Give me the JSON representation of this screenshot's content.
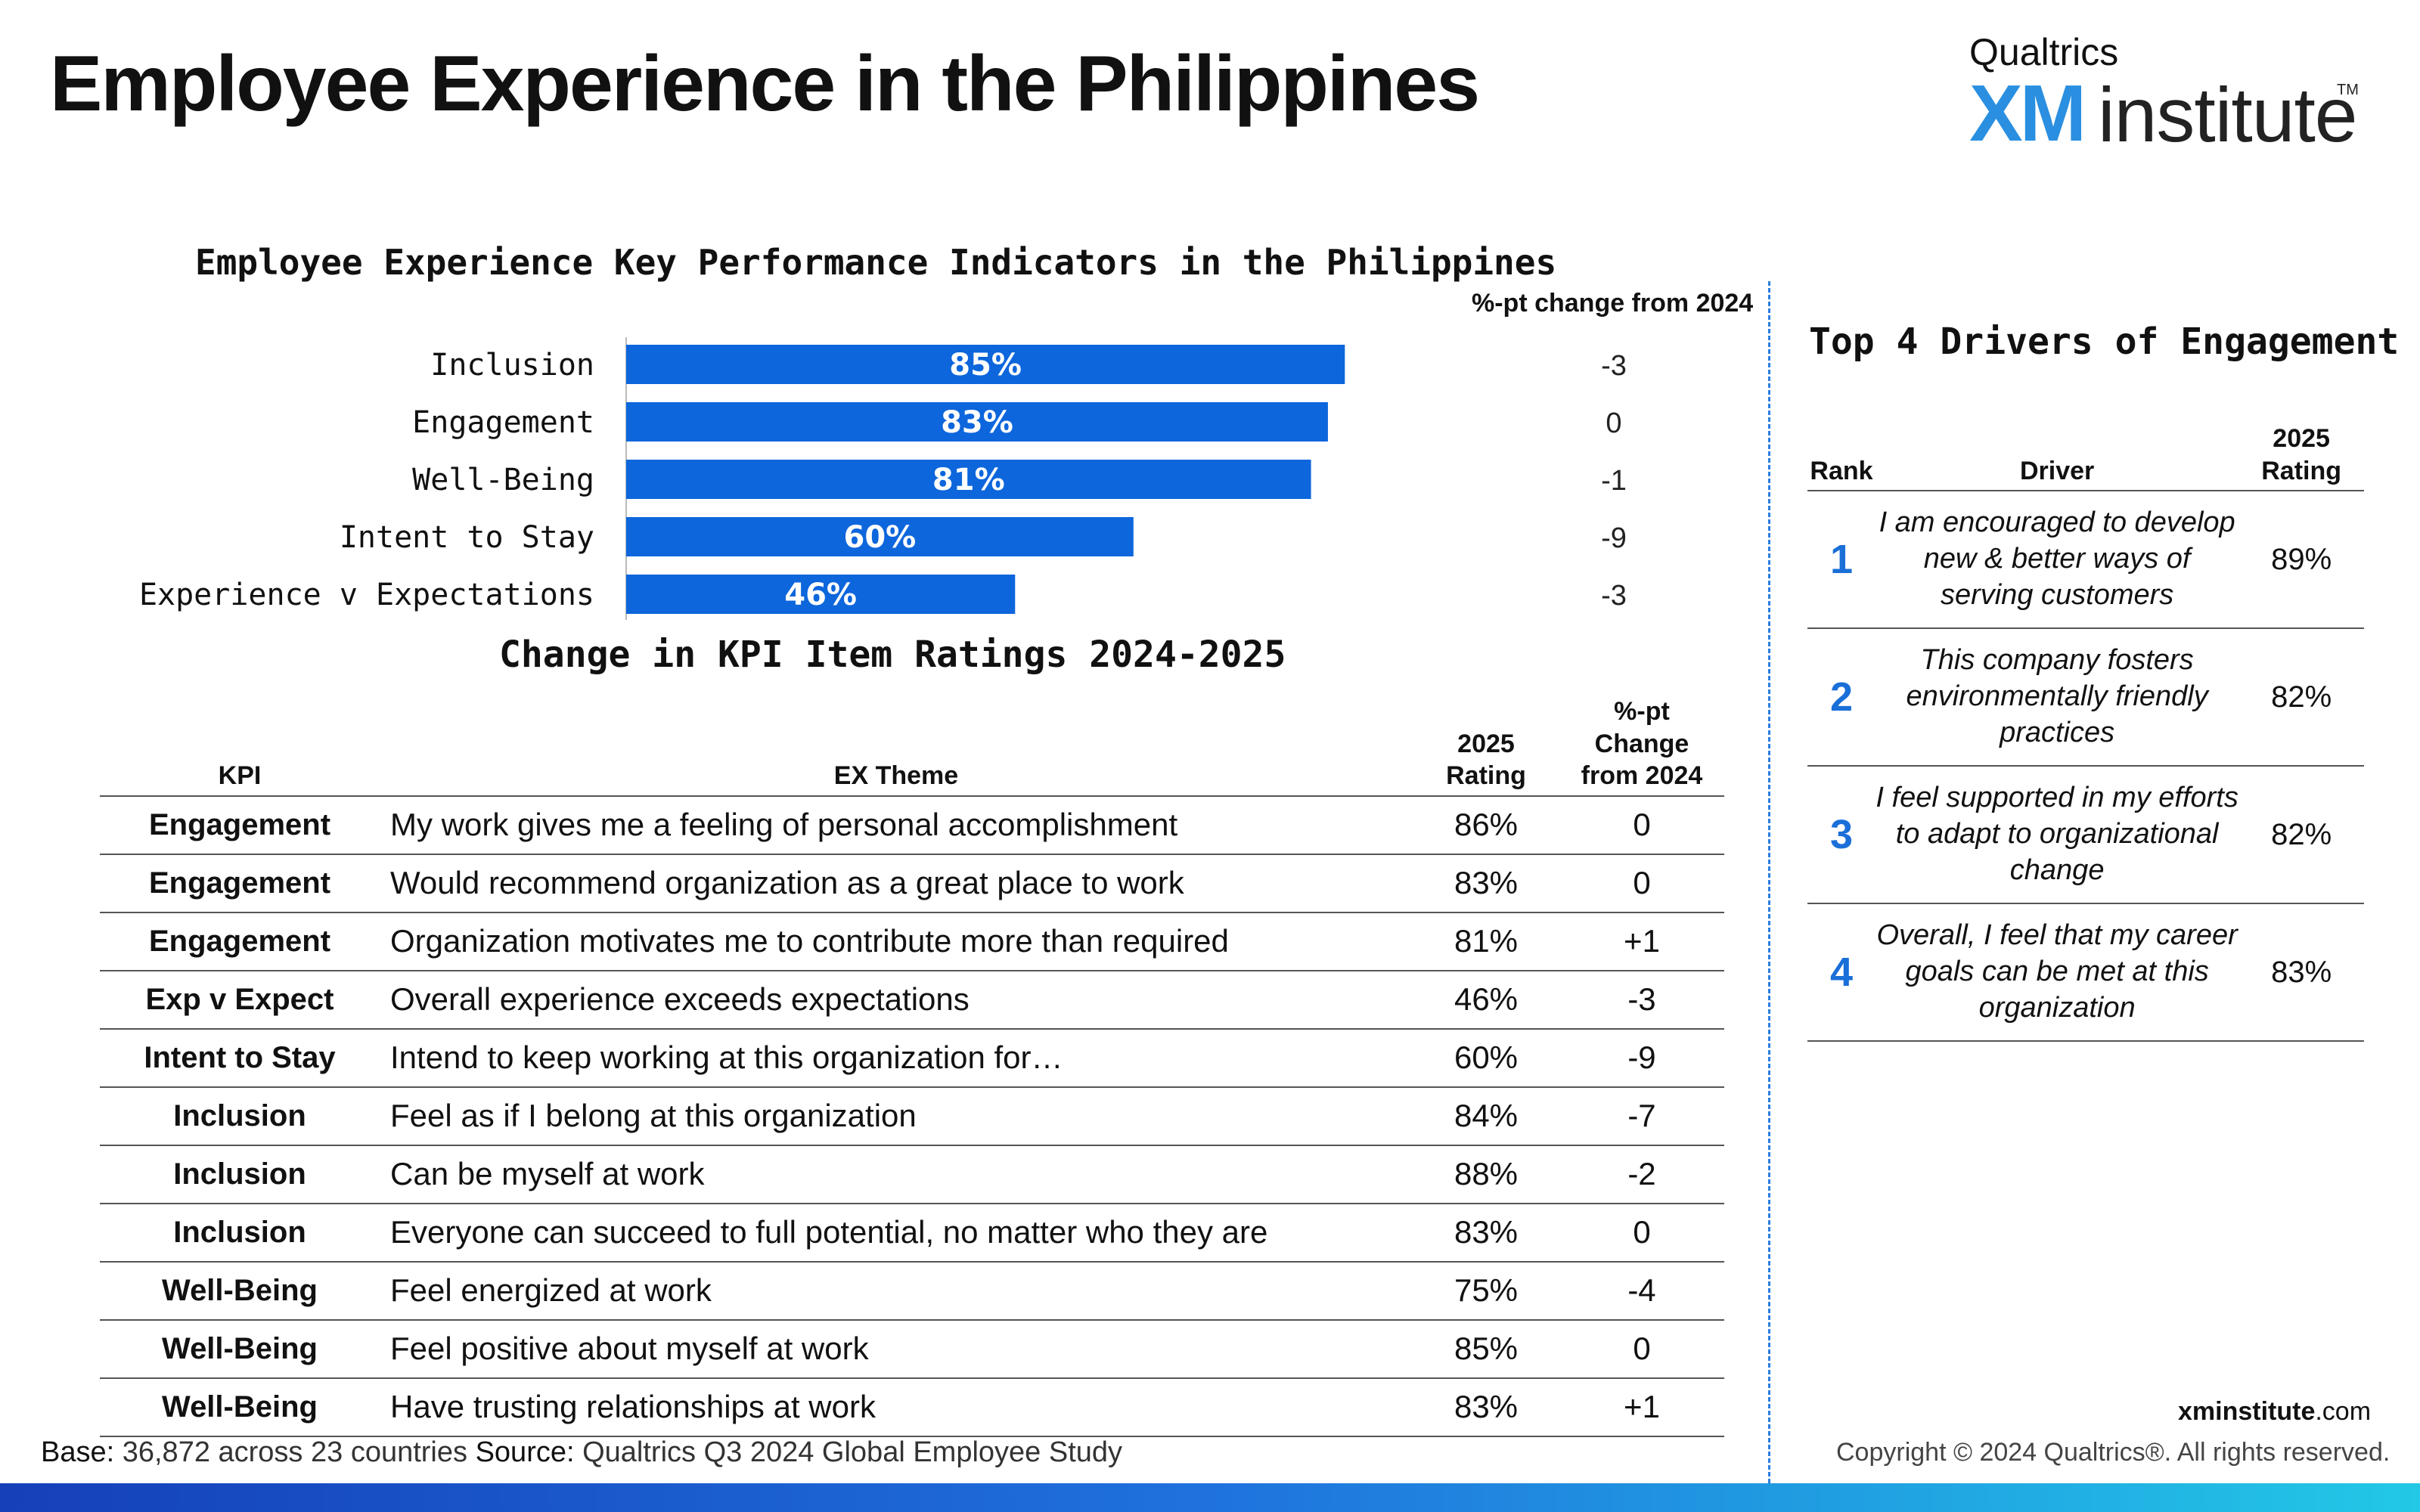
{
  "page": {
    "title": "Employee Experience in the Philippines",
    "logo": {
      "brand": "Qualtrics",
      "mark": "XM",
      "word": "institute",
      "tm": "TM"
    }
  },
  "chart_data": {
    "type": "bar",
    "orientation": "horizontal",
    "title": "Employee Experience Key Performance Indicators in the Philippines",
    "categories": [
      "Inclusion",
      "Engagement",
      "Well-Being",
      "Intent to Stay",
      "Experience v Expectations"
    ],
    "values": [
      85,
      83,
      81,
      60,
      46
    ],
    "data_labels": [
      "85%",
      "83%",
      "81%",
      "60%",
      "46%"
    ],
    "change_header": "%-pt change from 2024",
    "changes": [
      "-3",
      "0",
      "-1",
      "-9",
      "-3"
    ],
    "xlim": [
      0,
      100
    ],
    "grid": false,
    "bar_color": "#0d66dc"
  },
  "change_table": {
    "title": "Change in KPI Item Ratings 2024-2025",
    "headers": {
      "kpi": "KPI",
      "theme": "EX Theme",
      "rating": "2025 Rating",
      "change": "%-pt Change from 2024"
    },
    "rows": [
      {
        "kpi": "Engagement",
        "theme": "My work gives me a feeling of personal accomplishment",
        "rating": "86%",
        "change": "0"
      },
      {
        "kpi": "Engagement",
        "theme": "Would recommend organization as a great place to work",
        "rating": "83%",
        "change": "0"
      },
      {
        "kpi": "Engagement",
        "theme": "Organization motivates me to contribute more than required",
        "rating": "81%",
        "change": "+1"
      },
      {
        "kpi": "Exp v Expect",
        "theme": "Overall experience exceeds expectations",
        "rating": "46%",
        "change": "-3"
      },
      {
        "kpi": "Intent to Stay",
        "theme": "Intend to keep working at this organization for…",
        "rating": "60%",
        "change": "-9"
      },
      {
        "kpi": "Inclusion",
        "theme": "Feel as if I belong at this organization",
        "rating": "84%",
        "change": "-7"
      },
      {
        "kpi": "Inclusion",
        "theme": "Can be myself at work",
        "rating": "88%",
        "change": "-2"
      },
      {
        "kpi": "Inclusion",
        "theme": "Everyone can succeed to full potential, no matter who they are",
        "rating": "83%",
        "change": "0"
      },
      {
        "kpi": "Well-Being",
        "theme": "Feel energized at work",
        "rating": "75%",
        "change": "-4"
      },
      {
        "kpi": "Well-Being",
        "theme": "Feel positive about myself at work",
        "rating": "85%",
        "change": "0"
      },
      {
        "kpi": "Well-Being",
        "theme": "Have trusting relationships at work",
        "rating": "83%",
        "change": "+1"
      }
    ]
  },
  "drivers": {
    "title": "Top 4 Drivers of Engagement",
    "headers": {
      "rank": "Rank",
      "driver": "Driver",
      "rating": "2025 Rating"
    },
    "rows": [
      {
        "rank": "1",
        "driver": "I am encouraged to develop new & better ways of serving customers",
        "rating": "89%"
      },
      {
        "rank": "2",
        "driver": "This company fosters environmentally friendly practices",
        "rating": "82%"
      },
      {
        "rank": "3",
        "driver": "I feel supported in my efforts to adapt to organizational change",
        "rating": "82%"
      },
      {
        "rank": "4",
        "driver": "Overall, I feel that my career goals can be met at this organization",
        "rating": "83%"
      }
    ]
  },
  "footer": {
    "base_label": "Base:",
    "base_text": " 36,872 across 23 countries ",
    "source_label": "Source:",
    "source_text": " Qualtrics Q3 2024 Global Employee Study",
    "site_bold": "xminstitute",
    "site_rest": ".com",
    "copyright": "Copyright © 2024 Qualtrics®. All rights reserved."
  },
  "colors": {
    "accent": "#1a6fd8",
    "bar": "#0d66dc",
    "divider": "#2a7fe0"
  }
}
